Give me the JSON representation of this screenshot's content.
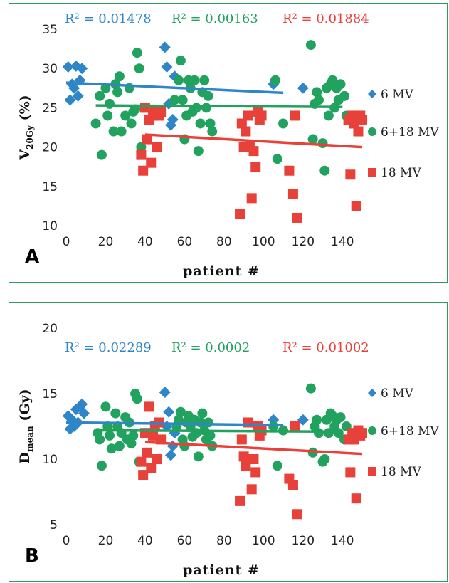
{
  "colors": {
    "mv6": "#2e86c8",
    "mv618": "#21a25f",
    "mv18": "#e8413a",
    "frame": "#2e9a5c"
  },
  "chart_data": [
    {
      "type": "scatter",
      "panel_label": "A",
      "xlabel": "patient #",
      "ylabel_main": "V",
      "ylabel_sub": "20Gy",
      "ylabel_tail": " (%)",
      "xlim": [
        0,
        150
      ],
      "ylim": [
        10,
        35
      ],
      "xticks": [
        "0",
        "20",
        "40",
        "60",
        "80",
        "100",
        "120",
        "140"
      ],
      "yticks": [
        "10",
        "15",
        "20",
        "25",
        "30",
        "35"
      ],
      "legend": [
        "6 MV",
        "6+18 MV",
        "18 MV"
      ],
      "r2": [
        "R² = 0.01478",
        "R² = 0.00163",
        "R² = 0.01884"
      ],
      "series": [
        {
          "name": "6 MV",
          "marker": "diamond",
          "points": [
            [
              1,
              30.2
            ],
            [
              2,
              26
            ],
            [
              3,
              28
            ],
            [
              4,
              27.5
            ],
            [
              5,
              30.3
            ],
            [
              6,
              26.5
            ],
            [
              7,
              28.5
            ],
            [
              8,
              30
            ],
            [
              50,
              32.7
            ],
            [
              51,
              30.2
            ],
            [
              52,
              25.5
            ],
            [
              53,
              22.8
            ],
            [
              54,
              23.5
            ],
            [
              55,
              29
            ],
            [
              105,
              28
            ],
            [
              120,
              27.5
            ]
          ],
          "trend": [
            [
              0,
              28.2
            ],
            [
              110,
              26.9
            ]
          ]
        },
        {
          "name": "6+18 MV",
          "marker": "circle",
          "points": [
            [
              15,
              23
            ],
            [
              17,
              26.5
            ],
            [
              18,
              19
            ],
            [
              20,
              27.5
            ],
            [
              21,
              24
            ],
            [
              22,
              25.5
            ],
            [
              24,
              22
            ],
            [
              25,
              28
            ],
            [
              26,
              27
            ],
            [
              27,
              29
            ],
            [
              28,
              22
            ],
            [
              30,
              24
            ],
            [
              32,
              27.5
            ],
            [
              33,
              23
            ],
            [
              34,
              24.5
            ],
            [
              35,
              24.8
            ],
            [
              36,
              32
            ],
            [
              37,
              30
            ],
            [
              38,
              20
            ],
            [
              55,
              26
            ],
            [
              57,
              28.5
            ],
            [
              58,
              31
            ],
            [
              59,
              26
            ],
            [
              60,
              21
            ],
            [
              61,
              24
            ],
            [
              62,
              28.5
            ],
            [
              63,
              27.5
            ],
            [
              64,
              24.5
            ],
            [
              65,
              28.5
            ],
            [
              66,
              25
            ],
            [
              67,
              19.5
            ],
            [
              68,
              23
            ],
            [
              69,
              27
            ],
            [
              70,
              28.5
            ],
            [
              71,
              25
            ],
            [
              72,
              26.5
            ],
            [
              73,
              23
            ],
            [
              74,
              22
            ],
            [
              106,
              28.5
            ],
            [
              107,
              18.5
            ],
            [
              110,
              23
            ],
            [
              124,
              33
            ],
            [
              125,
              21
            ],
            [
              126,
              25.5
            ],
            [
              127,
              27
            ],
            [
              128,
              26
            ],
            [
              130,
              20.5
            ],
            [
              131,
              17
            ],
            [
              132,
              27.5
            ],
            [
              133,
              24
            ],
            [
              134,
              28
            ],
            [
              135,
              28.5
            ],
            [
              136,
              25
            ],
            [
              137,
              27.5
            ],
            [
              138,
              26
            ],
            [
              139,
              28
            ],
            [
              141,
              26.5
            ],
            [
              142,
              24
            ]
          ],
          "trend": [
            [
              15,
              25.3
            ],
            [
              140,
              25.1
            ]
          ]
        },
        {
          "name": "18 MV",
          "marker": "square",
          "points": [
            [
              38,
              19
            ],
            [
              39,
              17
            ],
            [
              40,
              25
            ],
            [
              41,
              21
            ],
            [
              42,
              23.5
            ],
            [
              43,
              18
            ],
            [
              44,
              24
            ],
            [
              45,
              24.5
            ],
            [
              46,
              20
            ],
            [
              47,
              24
            ],
            [
              48,
              24.5
            ],
            [
              88,
              11.5
            ],
            [
              89,
              23
            ],
            [
              90,
              20
            ],
            [
              91,
              22
            ],
            [
              92,
              24
            ],
            [
              93,
              20
            ],
            [
              94,
              13.5
            ],
            [
              95,
              19.5
            ],
            [
              96,
              17.5
            ],
            [
              97,
              24.5
            ],
            [
              98,
              23.5
            ],
            [
              99,
              24
            ],
            [
              113,
              17
            ],
            [
              115,
              14
            ],
            [
              116,
              24
            ],
            [
              117,
              11
            ],
            [
              143,
              23.5
            ],
            [
              144,
              16.5
            ],
            [
              145,
              24
            ],
            [
              146,
              23
            ],
            [
              147,
              12.5
            ],
            [
              148,
              22
            ],
            [
              149,
              24
            ],
            [
              150,
              23.5
            ]
          ],
          "trend": [
            [
              40,
              21.6
            ],
            [
              150,
              20
            ]
          ]
        }
      ]
    },
    {
      "type": "scatter",
      "panel_label": "B",
      "xlabel": "patient #",
      "ylabel_main": "D",
      "ylabel_sub": "mean",
      "ylabel_tail": " (Gy)",
      "xlim": [
        0,
        150
      ],
      "ylim": [
        5,
        20
      ],
      "xticks": [
        "0",
        "20",
        "40",
        "60",
        "80",
        "100",
        "120",
        "140"
      ],
      "yticks": [
        "5",
        "10",
        "15",
        "20"
      ],
      "legend": [
        "6 MV",
        "6+18 MV",
        "18 MV"
      ],
      "r2": [
        "R² = 0.02289",
        "R² = 0.0002",
        "R² = 0.01002"
      ],
      "series": [
        {
          "name": "6 MV",
          "marker": "diamond",
          "points": [
            [
              1,
              13.3
            ],
            [
              2,
              12.3
            ],
            [
              3,
              13
            ],
            [
              4,
              12.5
            ],
            [
              5,
              13.8
            ],
            [
              6,
              12.8
            ],
            [
              7,
              14
            ],
            [
              8,
              14.2
            ],
            [
              9,
              13.5
            ],
            [
              50,
              15.1
            ],
            [
              51,
              12.5
            ],
            [
              52,
              13.6
            ],
            [
              53,
              10.3
            ],
            [
              54,
              11
            ],
            [
              55,
              12
            ],
            [
              105,
              13
            ],
            [
              120,
              13
            ]
          ],
          "trend": [
            [
              0,
              12.8
            ],
            [
              110,
              12.6
            ]
          ]
        },
        {
          "name": "6+18 MV",
          "marker": "circle",
          "points": [
            [
              16,
              12
            ],
            [
              17,
              11.5
            ],
            [
              18,
              9.5
            ],
            [
              20,
              14
            ],
            [
              21,
              12.5
            ],
            [
              22,
              11.8
            ],
            [
              23,
              10.8
            ],
            [
              25,
              13.5
            ],
            [
              26,
              12.5
            ],
            [
              27,
              11
            ],
            [
              28,
              12
            ],
            [
              30,
              13.2
            ],
            [
              31,
              11.5
            ],
            [
              32,
              12.8
            ],
            [
              33,
              11.2
            ],
            [
              34,
              11.8
            ],
            [
              35,
              15
            ],
            [
              36,
              14.6
            ],
            [
              37,
              9.8
            ],
            [
              56,
              12.5
            ],
            [
              57,
              13
            ],
            [
              58,
              13.6
            ],
            [
              59,
              11.5
            ],
            [
              60,
              11
            ],
            [
              61,
              12.8
            ],
            [
              62,
              13.3
            ],
            [
              63,
              12.5
            ],
            [
              64,
              11.7
            ],
            [
              65,
              13
            ],
            [
              66,
              12
            ],
            [
              67,
              10.2
            ],
            [
              68,
              12.8
            ],
            [
              69,
              13.5
            ],
            [
              70,
              12.2
            ],
            [
              71,
              11.5
            ],
            [
              72,
              12.8
            ],
            [
              73,
              11.8
            ],
            [
              74,
              11
            ],
            [
              105,
              12.5
            ],
            [
              107,
              9.5
            ],
            [
              110,
              12.2
            ],
            [
              124,
              15.4
            ],
            [
              125,
              10.5
            ],
            [
              126,
              12.5
            ],
            [
              127,
              13
            ],
            [
              128,
              12
            ],
            [
              130,
              9.8
            ],
            [
              131,
              10
            ],
            [
              132,
              13
            ],
            [
              133,
              12
            ],
            [
              134,
              13.5
            ],
            [
              135,
              13.3
            ],
            [
              136,
              12.5
            ],
            [
              137,
              13
            ],
            [
              138,
              12
            ],
            [
              139,
              13.2
            ],
            [
              141,
              11.5
            ],
            [
              142,
              12.5
            ]
          ],
          "trend": [
            [
              15,
              12.2
            ],
            [
              140,
              12.1
            ]
          ]
        },
        {
          "name": "18 MV",
          "marker": "square",
          "points": [
            [
              38,
              9.8
            ],
            [
              39,
              8.8
            ],
            [
              40,
              12
            ],
            [
              41,
              10.5
            ],
            [
              42,
              14
            ],
            [
              43,
              9.3
            ],
            [
              44,
              11.8
            ],
            [
              45,
              12.5
            ],
            [
              46,
              10
            ],
            [
              47,
              12.8
            ],
            [
              48,
              11.5
            ],
            [
              88,
              6.8
            ],
            [
              89,
              11.5
            ],
            [
              90,
              10.2
            ],
            [
              91,
              9.5
            ],
            [
              92,
              12.8
            ],
            [
              93,
              10
            ],
            [
              94,
              7.7
            ],
            [
              95,
              10
            ],
            [
              96,
              9
            ],
            [
              97,
              12.5
            ],
            [
              98,
              11.8
            ],
            [
              99,
              12.2
            ],
            [
              113,
              8.5
            ],
            [
              115,
              8
            ],
            [
              116,
              12.5
            ],
            [
              117,
              5.8
            ],
            [
              143,
              11.5
            ],
            [
              144,
              9
            ],
            [
              145,
              12
            ],
            [
              146,
              11.5
            ],
            [
              147,
              7
            ],
            [
              148,
              12.2
            ],
            [
              149,
              11.8
            ],
            [
              150,
              12
            ]
          ],
          "trend": [
            [
              40,
              11.3
            ],
            [
              150,
              10.4
            ]
          ]
        }
      ]
    }
  ]
}
